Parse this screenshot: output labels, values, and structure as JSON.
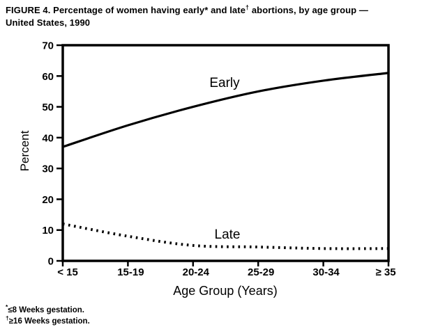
{
  "figure": {
    "title_prefix": "FIGURE 4. Percentage of women having early* and late",
    "title_sup": "†",
    "title_suffix": " abortions, by age group —",
    "title_line2": "United States, 1990"
  },
  "footnotes": [
    {
      "sup": "*",
      "text": "≤8 Weeks gestation."
    },
    {
      "sup": "†",
      "text": "≥16 Weeks gestation."
    }
  ],
  "chart_data": {
    "type": "line",
    "title": "FIGURE 4. Percentage of women having early* and late† abortions, by age group — United States, 1990",
    "categories": [
      "< 15",
      "15-19",
      "20-24",
      "25-29",
      "30-34",
      "≥ 35"
    ],
    "series": [
      {
        "name": "Early",
        "style": "solid",
        "values": [
          37,
          44,
          50,
          55,
          58.5,
          61
        ]
      },
      {
        "name": "Late",
        "style": "dotted",
        "values": [
          12,
          8,
          5,
          4.5,
          4,
          4
        ]
      }
    ],
    "xlabel": "Age Group (Years)",
    "ylabel": "Percent",
    "ylim": [
      0,
      70
    ],
    "yticks": [
      0,
      10,
      20,
      30,
      40,
      50,
      60,
      70
    ],
    "grid": false,
    "legend_position": "inline-labels",
    "line_color": "#000000",
    "background": "#ffffff",
    "annotations": [
      "*≤8 Weeks gestation.",
      "†≥16 Weeks gestation."
    ]
  }
}
